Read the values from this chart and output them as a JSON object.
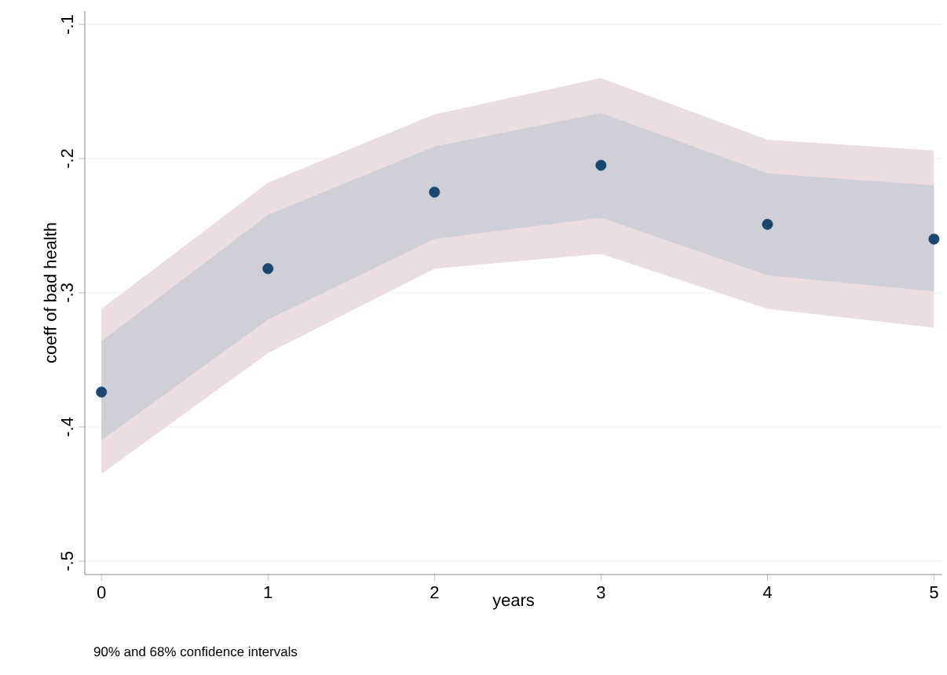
{
  "chart_data": {
    "type": "scatter",
    "xlabel": "years",
    "ylabel": "coeff of bad health",
    "x": [
      0,
      1,
      2,
      3,
      4,
      5
    ],
    "series": [
      {
        "color": "#ecdde0",
        "values": [
          null,
          null,
          null,
          null,
          null,
          null
        ],
        "lower": [
          -0.435,
          -0.345,
          -0.282,
          -0.271,
          -0.312,
          -0.326
        ],
        "upper": [
          -0.312,
          -0.218,
          -0.167,
          -0.14,
          -0.186,
          -0.194
        ]
      },
      {
        "color": "#cfcfd8",
        "values": [
          null,
          null,
          null,
          null,
          null,
          null
        ],
        "lower": [
          -0.41,
          -0.32,
          -0.26,
          -0.244,
          -0.287,
          -0.299
        ],
        "upper": [
          -0.336,
          -0.242,
          -0.191,
          -0.166,
          -0.211,
          -0.22
        ]
      },
      {
        "color": "#1a476f",
        "values": [
          -0.374,
          -0.282,
          -0.225,
          -0.205,
          -0.249,
          -0.26
        ]
      }
    ],
    "xlim": [
      -0.1,
      5.05
    ],
    "ylim": [
      -0.51,
      -0.09
    ],
    "xticks": [
      0,
      1,
      2,
      3,
      4,
      5
    ],
    "yticks": [
      {
        "value": -0.5,
        "label": "-.5"
      },
      {
        "value": -0.4,
        "label": "-.4"
      },
      {
        "value": -0.3,
        "label": "-.3"
      },
      {
        "value": -0.2,
        "label": "-.2"
      },
      {
        "value": -0.1,
        "label": "-.1"
      }
    ],
    "grid": "y",
    "annotations": [
      "90% and 68% confidence intervals"
    ]
  }
}
